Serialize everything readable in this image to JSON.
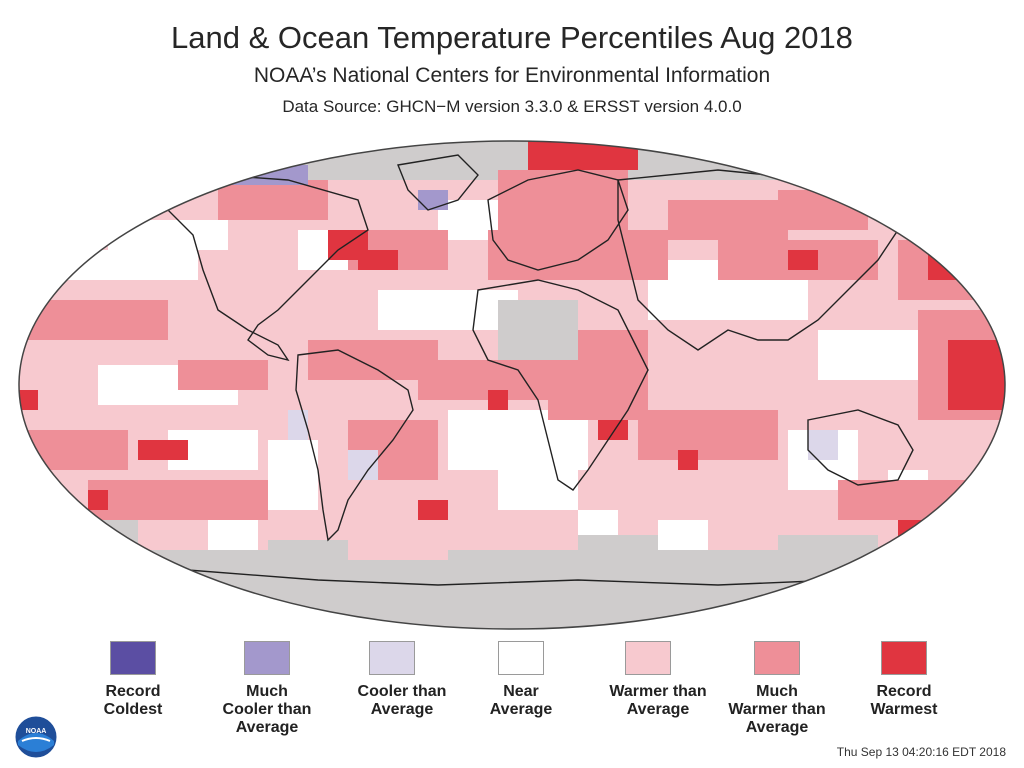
{
  "title": "Land & Ocean Temperature Percentiles Aug 2018",
  "subtitle": "NOAA’s National Centers for Environmental Information",
  "source": "Data Source: GHCN−M version 3.3.0 & ERSST version 4.0.0",
  "timestamp": "Thu Sep 13 04:20:16 EDT 2018",
  "logo_text": "NOAA",
  "colors": {
    "record_coldest": "#5b4ea3",
    "much_cooler": "#a398cc",
    "cooler": "#dcd7ea",
    "near": "#ffffff",
    "warmer": "#f7c9cf",
    "much_warmer": "#ee8f98",
    "record_warmest": "#e03540",
    "no_data": "#cfcccc",
    "land_outline": "#222222"
  },
  "legend": [
    {
      "lines": [
        "Record",
        "Coldest"
      ],
      "color": "#5b4ea3"
    },
    {
      "lines": [
        "Much",
        "Cooler than",
        "Average"
      ],
      "color": "#a398cc"
    },
    {
      "lines": [
        "Cooler than",
        "Average"
      ],
      "color": "#dcd7ea"
    },
    {
      "lines": [
        "Near",
        "Average"
      ],
      "color": "#ffffff"
    },
    {
      "lines": [
        "Warmer than",
        "Average"
      ],
      "color": "#f7c9cf"
    },
    {
      "lines": [
        "Much",
        "Warmer than",
        "Average"
      ],
      "color": "#ee8f98"
    },
    {
      "lines": [
        "Record",
        "Warmest"
      ],
      "color": "#e03540"
    }
  ]
}
